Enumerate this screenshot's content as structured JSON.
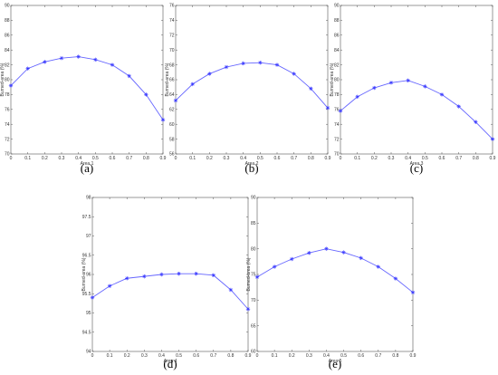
{
  "style": {
    "line_color": "#6666ff",
    "marker_color": "#3333ff"
  },
  "chart_data": [
    {
      "type": "line",
      "caption": "(a)",
      "xlabel": "Area 1",
      "ylabel": "Burned-area (%)",
      "xlim": [
        0,
        0.9
      ],
      "ylim": [
        70,
        90
      ],
      "xticks": [
        0,
        0.1,
        0.2,
        0.3,
        0.4,
        0.5,
        0.6,
        0.7,
        0.8,
        0.9
      ],
      "yticks": [
        70,
        72,
        74,
        76,
        78,
        80,
        82,
        84,
        86,
        88,
        90
      ],
      "x": [
        0,
        0.1,
        0.2,
        0.3,
        0.4,
        0.5,
        0.6,
        0.7,
        0.8,
        0.9
      ],
      "y": [
        79.2,
        81.5,
        82.4,
        82.9,
        83.1,
        82.7,
        82.0,
        80.5,
        78.0,
        74.6
      ]
    },
    {
      "type": "line",
      "caption": "(b)",
      "xlabel": "Area 2",
      "ylabel": "Burned-area (%)",
      "xlim": [
        0,
        0.9
      ],
      "ylim": [
        56,
        76
      ],
      "xticks": [
        0,
        0.1,
        0.2,
        0.3,
        0.4,
        0.5,
        0.6,
        0.7,
        0.8,
        0.9
      ],
      "yticks": [
        56,
        58,
        60,
        62,
        64,
        66,
        68,
        70,
        72,
        74,
        76
      ],
      "x": [
        0,
        0.1,
        0.2,
        0.3,
        0.4,
        0.5,
        0.6,
        0.7,
        0.8,
        0.9
      ],
      "y": [
        63.2,
        65.4,
        66.8,
        67.7,
        68.2,
        68.3,
        68.0,
        66.8,
        64.8,
        62.2
      ]
    },
    {
      "type": "line",
      "caption": "(c)",
      "xlabel": "Area 3",
      "ylabel": "Burned-area (%)",
      "xlim": [
        0,
        0.9
      ],
      "ylim": [
        70,
        90
      ],
      "xticks": [
        0,
        0.1,
        0.2,
        0.3,
        0.4,
        0.5,
        0.6,
        0.7,
        0.8,
        0.9
      ],
      "yticks": [
        70,
        72,
        74,
        76,
        78,
        80,
        82,
        84,
        86,
        88,
        90
      ],
      "x": [
        0,
        0.1,
        0.2,
        0.3,
        0.4,
        0.5,
        0.6,
        0.7,
        0.8,
        0.9
      ],
      "y": [
        75.8,
        77.7,
        78.9,
        79.6,
        79.9,
        79.1,
        78.0,
        76.4,
        74.3,
        72.0
      ]
    },
    {
      "type": "line",
      "caption": "(d)",
      "xlabel": "Area 4",
      "ylabel": "Burned-area (%)",
      "xlim": [
        0,
        0.9
      ],
      "ylim": [
        94,
        98
      ],
      "xticks": [
        0,
        0.1,
        0.2,
        0.3,
        0.4,
        0.5,
        0.6,
        0.7,
        0.8,
        0.9
      ],
      "yticks": [
        94,
        94.5,
        95,
        95.5,
        96,
        96.5,
        97,
        97.5,
        98
      ],
      "ytick_labels": [
        "94",
        "94.5",
        "95",
        "95.5",
        "96",
        "96.5",
        "97",
        "97.5",
        "98"
      ],
      "x": [
        0,
        0.1,
        0.2,
        0.3,
        0.4,
        0.5,
        0.6,
        0.7,
        0.8,
        0.9
      ],
      "y": [
        95.4,
        95.7,
        95.9,
        95.95,
        96.0,
        96.02,
        96.02,
        95.98,
        95.6,
        95.1
      ]
    },
    {
      "type": "line",
      "caption": "(e)",
      "xlabel": "Area 5",
      "ylabel": "Burned-area (%)",
      "xlim": [
        0,
        0.9
      ],
      "ylim": [
        60,
        90
      ],
      "xticks": [
        0,
        0.1,
        0.2,
        0.3,
        0.4,
        0.5,
        0.6,
        0.7,
        0.8,
        0.9
      ],
      "yticks": [
        60,
        65,
        70,
        75,
        80,
        85,
        90
      ],
      "x": [
        0,
        0.1,
        0.2,
        0.3,
        0.4,
        0.5,
        0.6,
        0.7,
        0.8,
        0.9
      ],
      "y": [
        74.5,
        76.5,
        78.0,
        79.2,
        80.0,
        79.3,
        78.2,
        76.5,
        74.2,
        71.5
      ]
    }
  ]
}
